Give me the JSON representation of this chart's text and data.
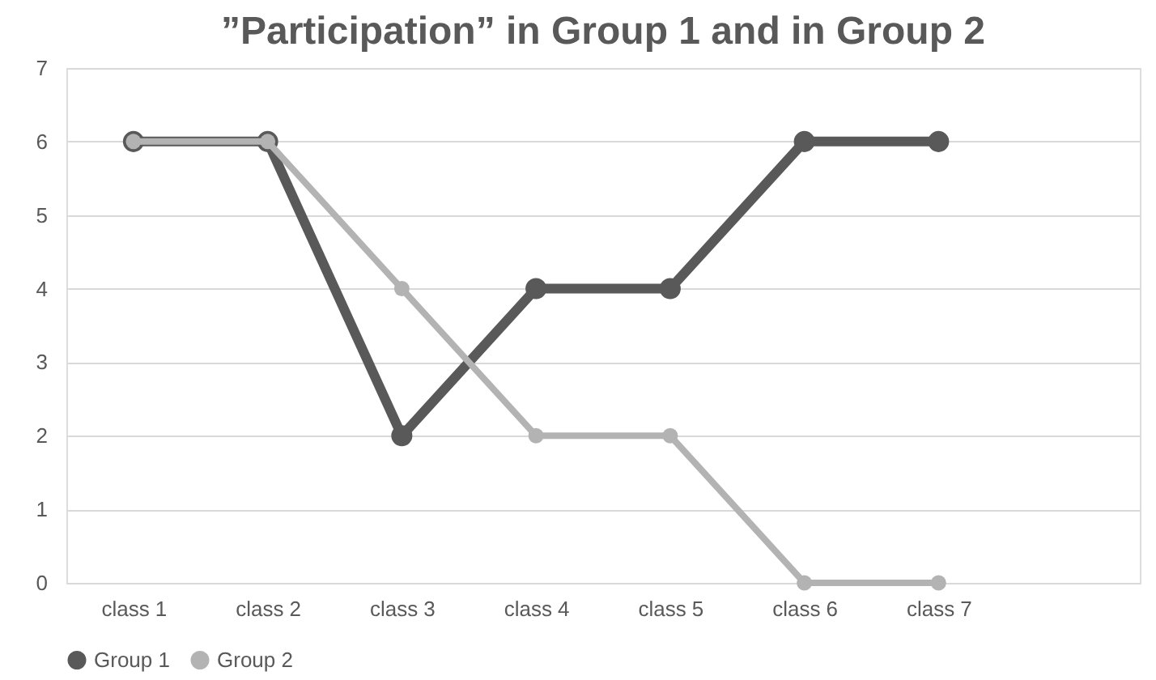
{
  "chart_data": {
    "type": "line",
    "title": "”Participation” in Group 1 and in Group 2",
    "categories": [
      "class 1",
      "class 2",
      "class 3",
      "class 4",
      "class 5",
      "class 6",
      "class 7",
      null
    ],
    "series": [
      {
        "name": "Group 1",
        "color": "#595959",
        "values": [
          6,
          6,
          2,
          4,
          4,
          6,
          6,
          null
        ]
      },
      {
        "name": "Group 2",
        "color": "#b3b3b3",
        "values": [
          6,
          6,
          4,
          2,
          2,
          0,
          0,
          null
        ]
      }
    ],
    "ylim": [
      0,
      7
    ],
    "yticks": [
      0,
      1,
      2,
      3,
      4,
      5,
      6,
      7
    ],
    "grid": "y",
    "legend": "bottom",
    "marker": "circle",
    "line_style": "solid"
  }
}
